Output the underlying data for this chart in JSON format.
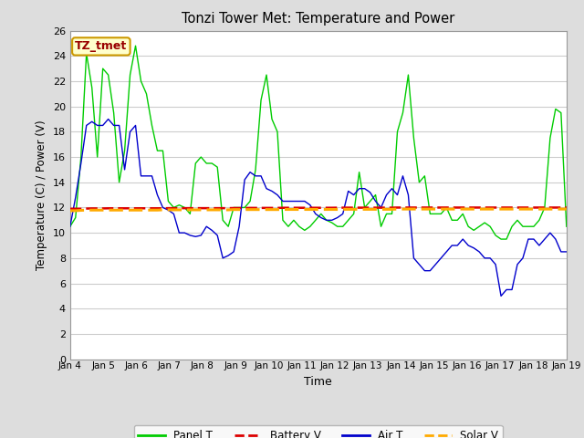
{
  "title": "Tonzi Tower Met: Temperature and Power",
  "xlabel": "Time",
  "ylabel": "Temperature (C) / Power (V)",
  "ylim": [
    0,
    26
  ],
  "yticks": [
    0,
    2,
    4,
    6,
    8,
    10,
    12,
    14,
    16,
    18,
    20,
    22,
    24,
    26
  ],
  "background_color": "#dddddd",
  "plot_bg_color": "#ffffff",
  "grid_color": "#cccccc",
  "annotation_text": "TZ_tmet",
  "annotation_box_color": "#ffffcc",
  "annotation_text_color": "#990000",
  "annotation_border_color": "#cc9900",
  "legend_items": [
    {
      "label": "Panel T",
      "color": "#00cc00",
      "linestyle": "-"
    },
    {
      "label": "Battery V",
      "color": "#dd0000",
      "linestyle": "--"
    },
    {
      "label": "Air T",
      "color": "#0000cc",
      "linestyle": "-"
    },
    {
      "label": "Solar V",
      "color": "#ffaa00",
      "linestyle": "--"
    }
  ],
  "panel_T": [
    10.5,
    11.2,
    16.0,
    24.2,
    21.5,
    16.0,
    23.0,
    22.5,
    19.5,
    14.0,
    16.5,
    22.5,
    24.8,
    22.0,
    21.0,
    18.5,
    16.5,
    16.5,
    12.5,
    12.0,
    12.2,
    12.0,
    11.5,
    15.5,
    16.0,
    15.5,
    15.5,
    15.2,
    11.0,
    10.5,
    12.0,
    12.0,
    12.0,
    12.5,
    15.0,
    20.5,
    22.5,
    19.0,
    18.0,
    11.0,
    10.5,
    11.0,
    10.5,
    10.2,
    10.5,
    11.0,
    11.5,
    11.0,
    10.8,
    10.5,
    10.5,
    11.0,
    11.5,
    14.8,
    12.0,
    12.5,
    13.0,
    10.5,
    11.5,
    11.5,
    18.0,
    19.5,
    22.5,
    17.5,
    14.0,
    14.5,
    11.5,
    11.5,
    11.5,
    12.0,
    11.0,
    11.0,
    11.5,
    10.5,
    10.2,
    10.5,
    10.8,
    10.5,
    9.8,
    9.5,
    9.5,
    10.5,
    11.0,
    10.5,
    10.5,
    10.5,
    11.0,
    12.0,
    17.5,
    19.8,
    19.5,
    10.5
  ],
  "battery_V": [
    11.9,
    11.9,
    11.9,
    11.92,
    11.93,
    11.93,
    11.93,
    11.94,
    11.94,
    11.94,
    11.94,
    11.94,
    11.94,
    11.94,
    11.94,
    11.94,
    11.94,
    11.94,
    11.95,
    11.95,
    11.95,
    11.95,
    11.95,
    11.95,
    11.95,
    11.95,
    11.95,
    11.95,
    11.95,
    11.95,
    11.96,
    11.96,
    11.96,
    11.97,
    11.97,
    11.97,
    11.97,
    11.97,
    11.97,
    11.98,
    11.98,
    11.98,
    11.98,
    11.98,
    11.98,
    11.98,
    11.98,
    11.98,
    11.98,
    11.99,
    11.99,
    11.99,
    11.99,
    11.99,
    11.99,
    11.99,
    11.99,
    11.99,
    11.99,
    11.99,
    12.0,
    12.0,
    12.0,
    12.0,
    12.0,
    12.0,
    12.0,
    12.0,
    12.0,
    12.0,
    12.0,
    12.0,
    12.0,
    12.0,
    12.0,
    12.0,
    12.0,
    12.0,
    12.0,
    12.0,
    12.0,
    12.0,
    12.0,
    12.0,
    12.0,
    12.0,
    12.0,
    12.0,
    12.0,
    12.0,
    12.0,
    12.0
  ],
  "air_T": [
    10.5,
    12.8,
    15.5,
    18.5,
    18.8,
    18.5,
    18.5,
    19.0,
    18.5,
    18.5,
    15.0,
    18.0,
    18.5,
    14.5,
    14.5,
    14.5,
    13.0,
    12.0,
    11.8,
    11.5,
    10.0,
    10.0,
    9.8,
    9.7,
    9.8,
    10.5,
    10.2,
    9.8,
    8.0,
    8.2,
    8.5,
    10.5,
    14.2,
    14.8,
    14.5,
    14.5,
    13.5,
    13.3,
    13.0,
    12.5,
    12.5,
    12.5,
    12.5,
    12.5,
    12.2,
    11.5,
    11.2,
    11.0,
    11.0,
    11.2,
    11.5,
    13.3,
    13.0,
    13.5,
    13.5,
    13.2,
    12.5,
    12.0,
    13.0,
    13.5,
    13.0,
    14.5,
    13.0,
    8.0,
    7.5,
    7.0,
    7.0,
    7.5,
    8.0,
    8.5,
    9.0,
    9.0,
    9.5,
    9.0,
    8.8,
    8.5,
    8.0,
    8.0,
    7.5,
    5.0,
    5.5,
    5.5,
    7.5,
    8.0,
    9.5,
    9.5,
    9.0,
    9.5,
    10.0,
    9.5,
    8.5,
    8.5
  ],
  "solar_V": [
    11.75,
    11.75,
    11.78,
    11.8,
    11.8,
    11.8,
    11.8,
    11.8,
    11.8,
    11.8,
    11.8,
    11.8,
    11.8,
    11.8,
    11.8,
    11.8,
    11.8,
    11.82,
    11.82,
    11.82,
    11.82,
    11.82,
    11.82,
    11.82,
    11.82,
    11.82,
    11.82,
    11.82,
    11.82,
    11.82,
    11.84,
    11.84,
    11.84,
    11.84,
    11.84,
    11.84,
    11.84,
    11.84,
    11.84,
    11.85,
    11.85,
    11.85,
    11.85,
    11.85,
    11.85,
    11.85,
    11.85,
    11.85,
    11.85,
    11.85,
    11.86,
    11.86,
    11.86,
    11.86,
    11.86,
    11.86,
    11.86,
    11.86,
    11.86,
    11.86,
    11.88,
    11.88,
    11.88,
    11.88,
    11.88,
    11.88,
    11.88,
    11.88,
    11.88,
    11.88,
    11.88,
    11.88,
    11.88,
    11.88,
    11.88,
    11.88,
    11.88,
    11.88,
    11.88,
    11.88,
    11.88,
    11.88,
    11.88,
    11.88,
    11.88,
    11.88,
    11.88,
    11.88,
    11.88,
    11.88,
    11.88,
    11.88
  ],
  "figwidth": 6.4,
  "figheight": 4.8,
  "dpi": 100
}
